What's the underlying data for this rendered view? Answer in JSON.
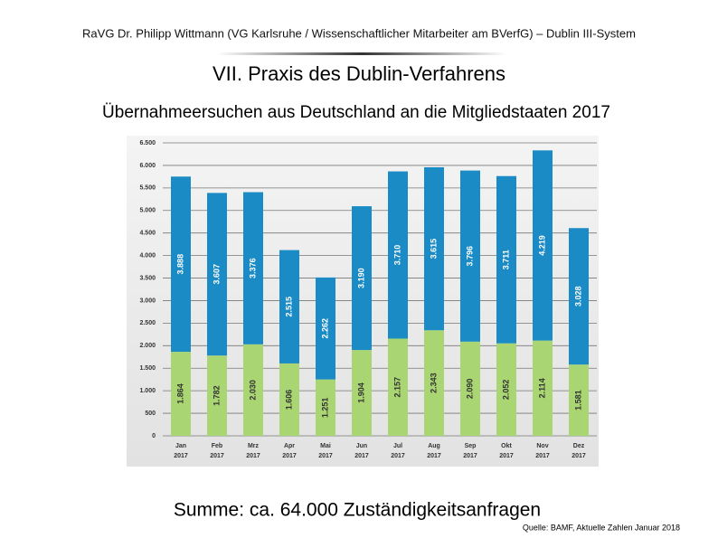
{
  "header": "RaVG Dr. Philipp Wittmann (VG Karlsruhe / Wissenschaftlicher Mitarbeiter am BVerfG) – Dublin III-System",
  "heading": "VII. Praxis des Dublin-Verfahrens",
  "chart_data": {
    "type": "stacked-bar",
    "title": "Übernahmeersuchen aus Deutschland an die Mitgliedstaaten 2017",
    "categories": [
      "Jan 2017",
      "Feb 2017",
      "Mrz 2017",
      "Apr 2017",
      "Mai 2017",
      "Jun 2017",
      "Jul 2017",
      "Aug 2017",
      "Sep 2017",
      "Okt 2017",
      "Nov 2017",
      "Dez 2017"
    ],
    "series": [
      {
        "color": "#a9d672",
        "label_color": "#333333",
        "values": [
          1864,
          1782,
          2030,
          1606,
          1251,
          1904,
          2157,
          2343,
          2090,
          2052,
          2114,
          1581
        ],
        "value_labels": [
          "1.864",
          "1.782",
          "2.030",
          "1.606",
          "1.251",
          "1.904",
          "2.157",
          "2.343",
          "2.090",
          "2.052",
          "2.114",
          "1.581"
        ]
      },
      {
        "color": "#1a8bc4",
        "label_color": "#ffffff",
        "values": [
          3888,
          3607,
          3376,
          2515,
          2262,
          3190,
          3710,
          3615,
          3796,
          3711,
          4219,
          3028
        ],
        "value_labels": [
          "3.888",
          "3.607",
          "3.376",
          "2.515",
          "2.262",
          "3.190",
          "3.710",
          "3.615",
          "3.796",
          "3.711",
          "4.219",
          "3.028"
        ]
      }
    ],
    "ylim": [
      0,
      6500
    ],
    "yticks": [
      0,
      500,
      {
        "value": 1000,
        "label": "1.000"
      },
      {
        "value": 1500,
        "label": "1.500"
      },
      {
        "value": 2000,
        "label": "2.000"
      },
      {
        "value": 2500,
        "label": "2.500"
      },
      {
        "value": 3000,
        "label": "3.000"
      },
      {
        "value": 3500,
        "label": "3.500"
      },
      {
        "value": 4000,
        "label": "4.000"
      },
      {
        "value": 4500,
        "label": "4.500"
      },
      {
        "value": 5000,
        "label": "5.000"
      },
      {
        "value": 5500,
        "label": "5.500"
      },
      {
        "value": 6000,
        "label": "6.000"
      },
      {
        "value": 6500,
        "label": "6.500"
      }
    ],
    "grid": true
  },
  "footer": {
    "summary": "Summe: ca. 64.000 Zuständigkeitsanfragen",
    "source": "Quelle: BAMF, Aktuelle Zahlen Januar 2018"
  }
}
